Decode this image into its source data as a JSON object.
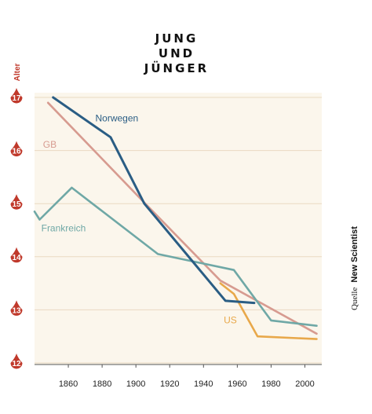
{
  "title_lines": [
    "JUNG",
    "UND",
    "JÜNGER"
  ],
  "source_prefix": "Quelle",
  "source_name": "New Scientist",
  "chart_data": {
    "type": "line",
    "title": "JUNG UND JÜNGER",
    "ylabel": "Alter",
    "xlabel": "",
    "xlim": [
      1840,
      2010
    ],
    "ylim": [
      12,
      17
    ],
    "xticks": [
      1860,
      1880,
      1900,
      1920,
      1940,
      1960,
      1980,
      2000
    ],
    "yticks": [
      12,
      13,
      14,
      15,
      16,
      17
    ],
    "grid": true,
    "colors": {
      "Norwegen": "#2a5d84",
      "GB": "#d79b90",
      "Frankreich": "#6fa8a6",
      "US": "#e8a84a",
      "accent": "#c0392b",
      "plot_bg": "#fbf6ec"
    },
    "series": [
      {
        "name": "Norwegen",
        "x": [
          1851,
          1885,
          1905,
          1953,
          1970,
          1970
        ],
        "y": [
          17.0,
          16.25,
          15.0,
          13.17,
          13.13,
          13.13
        ]
      },
      {
        "name": "GB",
        "x": [
          1848,
          1904,
          1950,
          2007
        ],
        "y": [
          16.9,
          15.05,
          13.55,
          12.55
        ]
      },
      {
        "name": "Frankreich",
        "x": [
          1840,
          1843,
          1862,
          1913,
          1958,
          1980,
          2007
        ],
        "y": [
          14.85,
          14.7,
          15.3,
          14.05,
          13.75,
          12.8,
          12.7
        ]
      },
      {
        "name": "US",
        "x": [
          1950,
          1958,
          1972,
          2007
        ],
        "y": [
          13.5,
          13.3,
          12.5,
          12.45
        ]
      }
    ]
  }
}
